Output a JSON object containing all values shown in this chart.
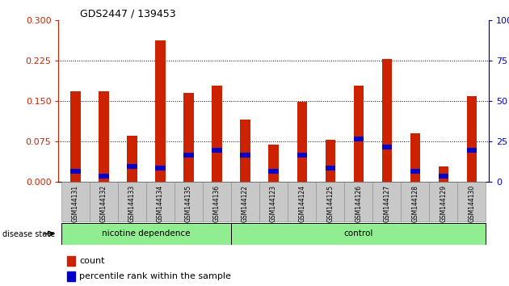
{
  "title": "GDS2447 / 139453",
  "samples": [
    "GSM144131",
    "GSM144132",
    "GSM144133",
    "GSM144134",
    "GSM144135",
    "GSM144136",
    "GSM144122",
    "GSM144123",
    "GSM144124",
    "GSM144125",
    "GSM144126",
    "GSM144127",
    "GSM144128",
    "GSM144129",
    "GSM144130"
  ],
  "red_values": [
    0.168,
    0.168,
    0.085,
    0.262,
    0.165,
    0.178,
    0.115,
    0.068,
    0.148,
    0.078,
    0.178,
    0.228,
    0.09,
    0.028,
    0.158
  ],
  "blue_pct": [
    5,
    2,
    8,
    7,
    15,
    18,
    15,
    5,
    15,
    7,
    25,
    20,
    5,
    2,
    18
  ],
  "groups": [
    {
      "label": "nicotine dependence",
      "start": 0,
      "end": 6,
      "color": "#90EE90"
    },
    {
      "label": "control",
      "start": 6,
      "end": 15,
      "color": "#90EE90"
    }
  ],
  "ylim_left": [
    0,
    0.3
  ],
  "ylim_right": [
    0,
    100
  ],
  "yticks_left": [
    0,
    0.075,
    0.15,
    0.225,
    0.3
  ],
  "yticks_right": [
    0,
    25,
    50,
    75,
    100
  ],
  "red_color": "#CC2200",
  "blue_color": "#0000CC",
  "bar_width": 0.35,
  "disease_state_label": "disease state",
  "legend_count": "count",
  "legend_pct": "percentile rank within the sample"
}
